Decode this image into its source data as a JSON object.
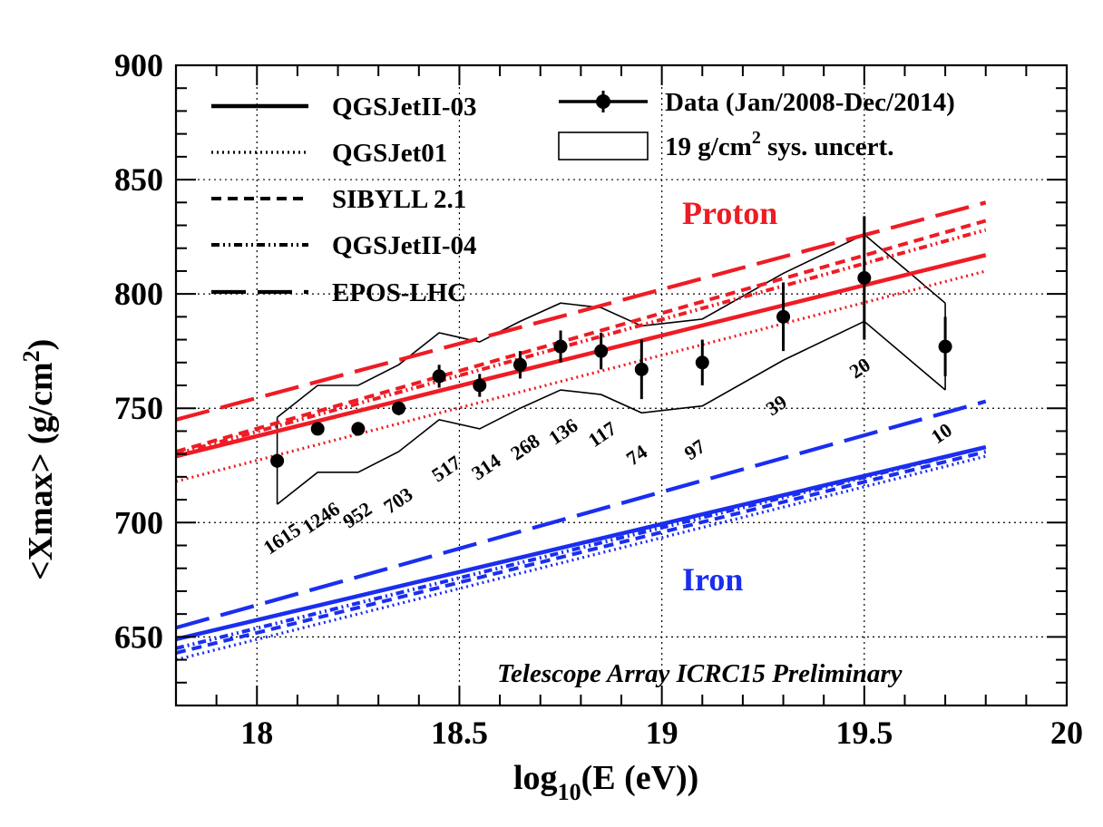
{
  "chart_data": {
    "type": "line",
    "xlabel": {
      "main": "log",
      "sub": "10",
      "rest": "(E (eV))"
    },
    "ylabel": {
      "main": "<Xmax> (g/cm",
      "sup": "2",
      "rest": ")"
    },
    "xlim": [
      17.8,
      20.0
    ],
    "ylim": [
      620,
      900
    ],
    "xticks": [
      18,
      18.5,
      19,
      19.5,
      20
    ],
    "xtick_labels": [
      "18",
      "18.5",
      "19",
      "19.5",
      "20"
    ],
    "yticks": [
      650,
      700,
      750,
      800,
      850,
      900
    ],
    "ytick_labels": [
      "650",
      "700",
      "750",
      "800",
      "850",
      "900"
    ],
    "grid": true,
    "annotation": "Telescope Array ICRC15 Preliminary",
    "group_labels": {
      "proton": "Proton",
      "iron": "Iron"
    },
    "colors": {
      "proton": "#ee1c25",
      "iron": "#1a2ef0",
      "data": "#000000"
    },
    "legend": [
      {
        "label": "QGSJetII-03",
        "style": "solid"
      },
      {
        "label": "QGSJet01",
        "style": "dotted"
      },
      {
        "label": "SIBYLL 2.1",
        "style": "dashed"
      },
      {
        "label": "QGSJetII-04",
        "style": "dashdot"
      },
      {
        "label": "EPOS-LHC",
        "style": "longdash"
      }
    ],
    "legend_right": {
      "data_label": "Data (Jan/2008-Dec/2014)",
      "sys_label_main": "19 g/cm",
      "sys_label_sup": "2",
      "sys_label_rest": " sys. uncert."
    },
    "model_lines": [
      {
        "model": "QGSJetII-03",
        "particle": "proton",
        "style": "solid",
        "x": [
          17.8,
          19.8
        ],
        "y": [
          729,
          817
        ]
      },
      {
        "model": "QGSJet01",
        "particle": "proton",
        "style": "dotted",
        "x": [
          17.8,
          19.8
        ],
        "y": [
          718,
          810
        ]
      },
      {
        "model": "SIBYLL 2.1",
        "particle": "proton",
        "style": "dashed",
        "x": [
          17.8,
          19.8
        ],
        "y": [
          731,
          832
        ]
      },
      {
        "model": "QGSJetII-04",
        "particle": "proton",
        "style": "dashdot",
        "x": [
          17.8,
          19.8
        ],
        "y": [
          730,
          828
        ]
      },
      {
        "model": "EPOS-LHC",
        "particle": "proton",
        "style": "longdash",
        "x": [
          17.8,
          19.8
        ],
        "y": [
          745,
          840
        ]
      },
      {
        "model": "QGSJetII-03",
        "particle": "iron",
        "style": "solid",
        "x": [
          17.8,
          19.8
        ],
        "y": [
          649,
          733
        ]
      },
      {
        "model": "QGSJet01",
        "particle": "iron",
        "style": "dotted",
        "x": [
          17.8,
          19.8
        ],
        "y": [
          640,
          729
        ]
      },
      {
        "model": "SIBYLL 2.1",
        "particle": "iron",
        "style": "dashed",
        "x": [
          17.8,
          19.8
        ],
        "y": [
          643,
          731
        ]
      },
      {
        "model": "QGSJetII-04",
        "particle": "iron",
        "style": "dashdot",
        "x": [
          17.8,
          19.8
        ],
        "y": [
          645,
          733
        ]
      },
      {
        "model": "EPOS-LHC",
        "particle": "iron",
        "style": "longdash",
        "x": [
          17.8,
          19.8
        ],
        "y": [
          654,
          753
        ]
      }
    ],
    "data_points": {
      "x": [
        18.05,
        18.15,
        18.25,
        18.35,
        18.45,
        18.55,
        18.65,
        18.75,
        18.85,
        18.95,
        19.1,
        19.3,
        19.5,
        19.7
      ],
      "y": [
        727,
        741,
        741,
        750,
        764,
        760,
        769,
        777,
        775,
        767,
        770,
        790,
        807,
        777
      ],
      "err": [
        3,
        2,
        3,
        3,
        5,
        5,
        6,
        7,
        8,
        13,
        10,
        15,
        27,
        13
      ],
      "counts": [
        "1615",
        "1246",
        "952",
        "703",
        "517",
        "314",
        "268",
        "136",
        "117",
        "74",
        "97",
        "39",
        "20",
        "10"
      ]
    },
    "sys_band": {
      "x": [
        18.05,
        18.15,
        18.25,
        18.35,
        18.45,
        18.55,
        18.65,
        18.75,
        18.85,
        18.95,
        19.1,
        19.3,
        19.5,
        19.7
      ],
      "upper": [
        746,
        760,
        760,
        769,
        783,
        779,
        788,
        796,
        794,
        786,
        789,
        809,
        826,
        796
      ],
      "lower": [
        708,
        722,
        722,
        731,
        745,
        741,
        750,
        758,
        756,
        748,
        751,
        771,
        788,
        758
      ]
    }
  }
}
